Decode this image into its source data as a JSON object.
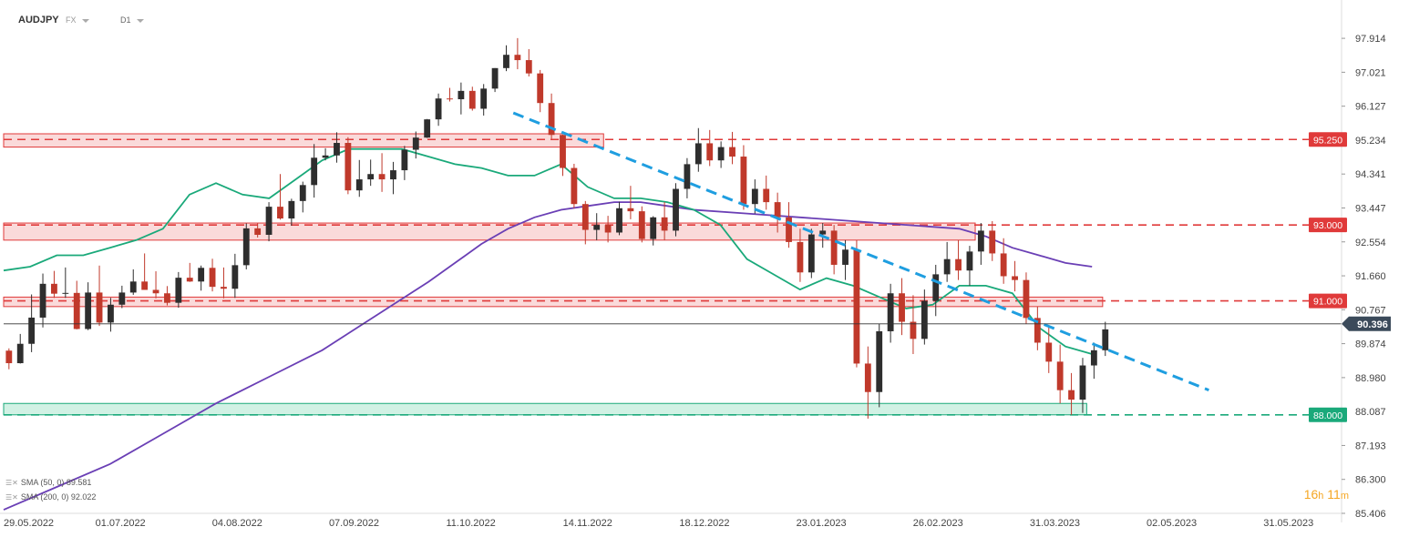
{
  "header": {
    "symbol": "AUDJPY",
    "source": "FX",
    "timeframe": "D1"
  },
  "legend": [
    {
      "label": "SMA (50, 0) 89.581"
    },
    {
      "label": "SMA (200, 0) 92.022"
    }
  ],
  "timer": {
    "hours": "16",
    "h": "h",
    "minutes": "11",
    "m": "m"
  },
  "colors": {
    "up": "#2e2e2e",
    "down": "#c0392b",
    "sma50": "#1aa97a",
    "sma200": "#6a3fb5",
    "trend": "#1f9ee0",
    "resistance": "#e03a3a",
    "support": "#1aa97a",
    "zone_red_fill": "#f9d3d3",
    "zone_green_fill": "#c9eedf"
  },
  "chart_data": {
    "type": "candlestick",
    "y_axis": {
      "ticks": [
        "97.914",
        "97.021",
        "96.127",
        "95.234",
        "94.341",
        "93.447",
        "92.554",
        "91.660",
        "90.767",
        "89.874",
        "88.980",
        "88.087",
        "87.193",
        "86.300",
        "85.406"
      ],
      "range": [
        85.406,
        98.3
      ]
    },
    "x_axis": {
      "ticks": [
        "29.05.2022",
        "01.07.2022",
        "04.08.2022",
        "07.09.2022",
        "11.10.2022",
        "14.11.2022",
        "18.12.2022",
        "23.01.2023",
        "26.02.2023",
        "31.03.2023",
        "02.05.2023",
        "31.05.2023"
      ]
    },
    "current_price": {
      "label": "90.396",
      "value": 90.396
    },
    "levels": [
      {
        "label": "95.250",
        "value": 95.25,
        "kind": "resistance"
      },
      {
        "label": "93.000",
        "value": 93.0,
        "kind": "resistance"
      },
      {
        "label": "91.000",
        "value": 91.0,
        "kind": "resistance"
      },
      {
        "label": "88.000",
        "value": 88.0,
        "kind": "support"
      }
    ],
    "zones": [
      {
        "from": 95.05,
        "to": 95.4,
        "start_index": 0,
        "end_index": 11.3,
        "kind": "resistance"
      },
      {
        "from": 92.6,
        "to": 93.05,
        "start_index": 0,
        "end_index": 18.3,
        "kind": "resistance"
      },
      {
        "from": 90.85,
        "to": 91.1,
        "start_index": 0,
        "end_index": 20.7,
        "kind": "resistance"
      },
      {
        "from": 88.0,
        "to": 88.3,
        "start_index": 0,
        "end_index": 20.4,
        "kind": "support"
      }
    ],
    "trendline": {
      "from": [
        9.6,
        95.95
      ],
      "to": [
        22.7,
        88.65
      ]
    },
    "x_index_range": [
      0,
      25.2
    ],
    "sma50": [
      [
        0,
        91.8
      ],
      [
        0.5,
        91.9
      ],
      [
        1,
        92.2
      ],
      [
        1.5,
        92.2
      ],
      [
        2,
        92.4
      ],
      [
        2.5,
        92.6
      ],
      [
        3,
        92.9
      ],
      [
        3.5,
        93.8
      ],
      [
        4,
        94.1
      ],
      [
        4.5,
        93.8
      ],
      [
        5,
        93.7
      ],
      [
        5.5,
        94.2
      ],
      [
        6,
        94.7
      ],
      [
        6.5,
        95.0
      ],
      [
        7,
        95.0
      ],
      [
        7.5,
        95.0
      ],
      [
        8,
        94.8
      ],
      [
        8.5,
        94.6
      ],
      [
        9,
        94.5
      ],
      [
        9.5,
        94.3
      ],
      [
        10,
        94.3
      ],
      [
        10.5,
        94.6
      ],
      [
        11,
        94.0
      ],
      [
        11.5,
        93.7
      ],
      [
        12,
        93.7
      ],
      [
        12.5,
        93.6
      ],
      [
        13,
        93.4
      ],
      [
        13.5,
        93.0
      ],
      [
        14,
        92.1
      ],
      [
        14.5,
        91.7
      ],
      [
        15,
        91.3
      ],
      [
        15.5,
        91.6
      ],
      [
        16,
        91.4
      ],
      [
        16.5,
        91.1
      ],
      [
        17,
        90.8
      ],
      [
        17.5,
        90.9
      ],
      [
        18,
        91.4
      ],
      [
        18.5,
        91.4
      ],
      [
        19,
        91.2
      ],
      [
        19.5,
        90.3
      ],
      [
        20,
        89.8
      ],
      [
        20.5,
        89.6
      ]
    ],
    "sma200": [
      [
        0,
        85.5
      ],
      [
        1,
        86.1
      ],
      [
        2,
        86.7
      ],
      [
        3,
        87.5
      ],
      [
        4,
        88.3
      ],
      [
        5,
        89.0
      ],
      [
        6,
        89.7
      ],
      [
        7,
        90.6
      ],
      [
        8,
        91.5
      ],
      [
        8.5,
        92.0
      ],
      [
        9,
        92.5
      ],
      [
        9.5,
        92.9
      ],
      [
        10,
        93.2
      ],
      [
        10.5,
        93.4
      ],
      [
        11,
        93.5
      ],
      [
        11.5,
        93.6
      ],
      [
        12,
        93.6
      ],
      [
        12.5,
        93.5
      ],
      [
        13,
        93.4
      ],
      [
        14,
        93.3
      ],
      [
        15,
        93.2
      ],
      [
        16,
        93.1
      ],
      [
        17,
        93.0
      ],
      [
        18,
        92.9
      ],
      [
        18.5,
        92.7
      ],
      [
        19,
        92.4
      ],
      [
        19.5,
        92.2
      ],
      [
        20,
        92.0
      ],
      [
        20.5,
        91.9
      ]
    ],
    "candles": [
      [
        89.69,
        89.75,
        89.2,
        89.36
      ],
      [
        89.36,
        90.13,
        89.35,
        89.87
      ],
      [
        89.87,
        91.17,
        89.65,
        90.56
      ],
      [
        90.56,
        91.72,
        90.3,
        91.45
      ],
      [
        91.45,
        91.79,
        91.08,
        91.19
      ],
      [
        91.19,
        91.88,
        91.08,
        91.21
      ],
      [
        91.21,
        91.53,
        90.25,
        90.26
      ],
      [
        90.26,
        91.49,
        90.23,
        91.22
      ],
      [
        91.22,
        91.93,
        90.34,
        90.43
      ],
      [
        90.43,
        91.08,
        90.19,
        90.9
      ],
      [
        90.9,
        91.4,
        90.81,
        91.22
      ],
      [
        91.22,
        91.83,
        91.16,
        91.51
      ],
      [
        91.51,
        92.25,
        91.29,
        91.29
      ],
      [
        91.29,
        91.78,
        91.07,
        91.2
      ],
      [
        91.2,
        91.39,
        90.88,
        90.95
      ],
      [
        90.95,
        91.76,
        90.82,
        91.61
      ],
      [
        91.61,
        92.0,
        91.5,
        91.51
      ],
      [
        91.51,
        91.93,
        91.27,
        91.87
      ],
      [
        91.87,
        92.11,
        91.25,
        91.37
      ],
      [
        91.37,
        91.88,
        91.07,
        91.32
      ],
      [
        91.32,
        92.24,
        91.08,
        91.94
      ],
      [
        91.94,
        93.04,
        91.83,
        92.91
      ],
      [
        92.91,
        93.04,
        92.67,
        92.74
      ],
      [
        92.74,
        93.6,
        92.57,
        93.48
      ],
      [
        93.48,
        94.34,
        93.14,
        93.17
      ],
      [
        93.17,
        93.69,
        92.98,
        93.63
      ],
      [
        93.63,
        94.14,
        93.33,
        94.05
      ],
      [
        94.05,
        95.13,
        93.72,
        94.77
      ],
      [
        94.77,
        95.02,
        94.7,
        94.83
      ],
      [
        94.83,
        95.44,
        94.64,
        95.16
      ],
      [
        95.16,
        95.31,
        93.81,
        93.91
      ],
      [
        93.91,
        94.71,
        93.74,
        94.2
      ],
      [
        94.2,
        94.72,
        94.03,
        94.34
      ],
      [
        94.34,
        94.89,
        93.87,
        94.2
      ],
      [
        94.2,
        94.66,
        93.81,
        94.44
      ],
      [
        94.44,
        95.08,
        94.18,
        94.98
      ],
      [
        94.98,
        95.46,
        94.75,
        95.3
      ],
      [
        95.3,
        95.79,
        95.29,
        95.78
      ],
      [
        95.78,
        96.46,
        95.61,
        96.33
      ],
      [
        96.33,
        96.61,
        96.25,
        96.31
      ],
      [
        96.31,
        96.75,
        95.91,
        96.53
      ],
      [
        96.53,
        96.64,
        96.01,
        96.06
      ],
      [
        96.06,
        96.71,
        95.88,
        96.59
      ],
      [
        96.59,
        97.13,
        96.5,
        97.13
      ],
      [
        97.13,
        97.73,
        97.05,
        97.48
      ],
      [
        97.48,
        97.92,
        97.1,
        97.34
      ],
      [
        97.34,
        97.63,
        96.91,
        96.99
      ],
      [
        96.99,
        97.08,
        95.97,
        96.21
      ],
      [
        96.21,
        96.46,
        95.27,
        95.37
      ],
      [
        95.37,
        95.38,
        94.29,
        94.5
      ],
      [
        94.5,
        94.61,
        93.44,
        93.55
      ],
      [
        93.55,
        93.63,
        92.49,
        92.87
      ],
      [
        92.87,
        93.31,
        92.6,
        93.0
      ],
      [
        93.0,
        93.24,
        92.54,
        92.8
      ],
      [
        92.8,
        93.61,
        92.73,
        93.44
      ],
      [
        93.44,
        94.03,
        93.15,
        93.36
      ],
      [
        93.36,
        93.49,
        92.54,
        92.63
      ],
      [
        92.63,
        93.23,
        92.46,
        93.2
      ],
      [
        93.2,
        93.6,
        92.6,
        92.85
      ],
      [
        92.85,
        94.1,
        92.7,
        93.95
      ],
      [
        93.95,
        94.76,
        93.7,
        94.6
      ],
      [
        94.6,
        95.55,
        94.4,
        95.15
      ],
      [
        95.15,
        95.5,
        94.55,
        94.7
      ],
      [
        94.7,
        95.2,
        94.5,
        95.05
      ],
      [
        95.05,
        95.45,
        94.6,
        94.8
      ],
      [
        94.8,
        95.1,
        93.4,
        93.55
      ],
      [
        93.55,
        94.2,
        93.3,
        93.95
      ],
      [
        93.95,
        94.3,
        93.4,
        93.6
      ],
      [
        93.6,
        93.85,
        92.8,
        93.2
      ],
      [
        93.2,
        93.6,
        92.4,
        92.55
      ],
      [
        92.55,
        92.9,
        91.5,
        91.75
      ],
      [
        91.75,
        92.9,
        91.6,
        92.75
      ],
      [
        92.75,
        93.05,
        92.4,
        92.85
      ],
      [
        92.85,
        93.0,
        91.7,
        91.95
      ],
      [
        91.95,
        92.6,
        91.55,
        92.35
      ],
      [
        92.35,
        92.6,
        89.25,
        89.35
      ],
      [
        89.35,
        89.8,
        87.9,
        88.6
      ],
      [
        88.6,
        90.4,
        88.2,
        90.2
      ],
      [
        90.2,
        91.45,
        89.9,
        91.2
      ],
      [
        91.2,
        91.6,
        90.1,
        90.45
      ],
      [
        90.45,
        91.15,
        89.6,
        90.0
      ],
      [
        90.0,
        91.3,
        89.85,
        91.0
      ],
      [
        91.0,
        91.95,
        90.6,
        91.7
      ],
      [
        91.7,
        92.55,
        91.5,
        92.1
      ],
      [
        92.1,
        92.6,
        91.55,
        91.8
      ],
      [
        91.8,
        92.45,
        91.4,
        92.3
      ],
      [
        92.3,
        93.05,
        91.95,
        92.85
      ],
      [
        92.85,
        93.1,
        92.05,
        92.25
      ],
      [
        92.25,
        92.65,
        91.45,
        91.65
      ],
      [
        91.65,
        92.05,
        91.25,
        91.55
      ],
      [
        91.55,
        91.75,
        90.4,
        90.55
      ],
      [
        90.55,
        90.85,
        89.7,
        89.9
      ],
      [
        89.9,
        90.3,
        89.1,
        89.4
      ],
      [
        89.4,
        89.85,
        88.3,
        88.65
      ],
      [
        88.65,
        89.1,
        88.0,
        88.4
      ],
      [
        88.4,
        89.5,
        88.05,
        89.3
      ],
      [
        89.3,
        89.9,
        88.95,
        89.7
      ],
      [
        89.7,
        90.45,
        89.55,
        90.25
      ]
    ]
  }
}
